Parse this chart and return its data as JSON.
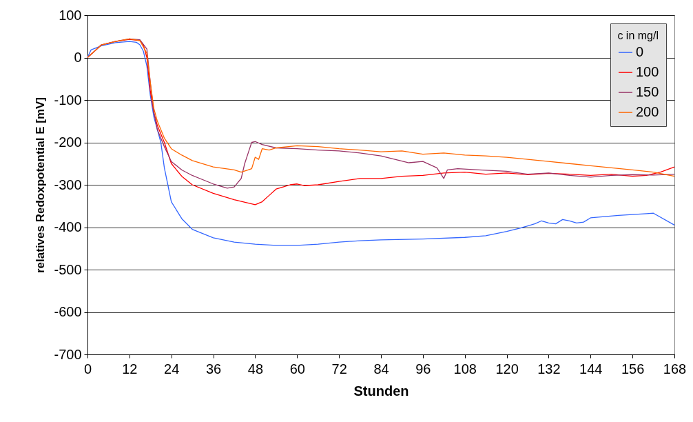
{
  "chart_data": {
    "type": "line",
    "xlabel": "Stunden",
    "ylabel": "relatives Redoxpotential E [mV]",
    "legend_title": "c in mg/l",
    "legend": "top right",
    "grid": "y",
    "marker": "none",
    "line_style": "solid",
    "xlim": [
      0,
      168
    ],
    "xticks": [
      0,
      12,
      24,
      36,
      48,
      60,
      72,
      84,
      96,
      108,
      120,
      132,
      144,
      156,
      168
    ],
    "ylim": [
      -700,
      100
    ],
    "yticks": [
      -700,
      -600,
      -500,
      -400,
      -300,
      -200,
      -100,
      0,
      100
    ],
    "series": [
      {
        "name": "0",
        "color": "#3366ff",
        "x": [
          0,
          1,
          4,
          8,
          12,
          14,
          15,
          16,
          17,
          18,
          19,
          20,
          21,
          22,
          23,
          24,
          27,
          30,
          36,
          42,
          48,
          54,
          60,
          66,
          72,
          78,
          84,
          96,
          108,
          114,
          120,
          124,
          128,
          130,
          132,
          134,
          136,
          138,
          140,
          142,
          144,
          148,
          152,
          156,
          160,
          162,
          168
        ],
        "values": [
          0,
          18,
          28,
          35,
          38,
          36,
          30,
          15,
          -20,
          -90,
          -140,
          -170,
          -200,
          -260,
          -300,
          -340,
          -380,
          -405,
          -425,
          -435,
          -440,
          -443,
          -443,
          -440,
          -435,
          -432,
          -430,
          -428,
          -424,
          -420,
          -410,
          -402,
          -392,
          -385,
          -390,
          -392,
          -382,
          -385,
          -390,
          -388,
          -378,
          -375,
          -372,
          -370,
          -368,
          -367,
          -395
        ]
      },
      {
        "name": "100",
        "color": "#ff0000",
        "x": [
          0,
          4,
          8,
          12,
          15,
          16,
          17,
          18,
          19,
          20,
          22,
          24,
          27,
          30,
          36,
          42,
          48,
          50,
          52,
          54,
          56,
          58,
          60,
          62,
          66,
          72,
          78,
          84,
          90,
          96,
          102,
          108,
          114,
          120,
          126,
          132,
          138,
          144,
          150,
          156,
          160,
          164,
          168
        ],
        "values": [
          0,
          30,
          38,
          43,
          40,
          30,
          0,
          -80,
          -130,
          -160,
          -200,
          -250,
          -280,
          -300,
          -320,
          -335,
          -347,
          -340,
          -325,
          -310,
          -305,
          -300,
          -298,
          -302,
          -300,
          -292,
          -285,
          -285,
          -280,
          -278,
          -272,
          -270,
          -275,
          -272,
          -276,
          -273,
          -275,
          -278,
          -275,
          -280,
          -278,
          -270,
          -258
        ]
      },
      {
        "name": "150",
        "color": "#993366",
        "x": [
          0,
          4,
          8,
          12,
          15,
          17,
          18,
          19,
          20,
          22,
          24,
          27,
          30,
          36,
          40,
          42,
          44,
          45,
          46,
          47,
          48,
          50,
          54,
          60,
          66,
          72,
          78,
          84,
          88,
          92,
          96,
          100,
          102,
          103,
          106,
          112,
          120,
          126,
          132,
          138,
          144,
          150,
          156,
          162,
          168
        ],
        "values": [
          0,
          30,
          38,
          44,
          42,
          20,
          -60,
          -130,
          -170,
          -210,
          -245,
          -265,
          -278,
          -298,
          -308,
          -305,
          -285,
          -250,
          -225,
          -200,
          -198,
          -205,
          -213,
          -215,
          -218,
          -220,
          -225,
          -232,
          -240,
          -248,
          -245,
          -260,
          -285,
          -265,
          -262,
          -265,
          -268,
          -275,
          -272,
          -278,
          -282,
          -278,
          -276,
          -277,
          -275
        ]
      },
      {
        "name": "200",
        "color": "#ff6600",
        "x": [
          0,
          4,
          8,
          12,
          15,
          17,
          18,
          19,
          20,
          22,
          24,
          27,
          30,
          36,
          42,
          44,
          46,
          47,
          48,
          49,
          50,
          52,
          54,
          60,
          66,
          72,
          78,
          84,
          90,
          96,
          102,
          108,
          114,
          120,
          126,
          132,
          138,
          144,
          150,
          156,
          162,
          168
        ],
        "values": [
          0,
          30,
          38,
          44,
          40,
          10,
          -60,
          -120,
          -150,
          -190,
          -215,
          -230,
          -243,
          -258,
          -265,
          -270,
          -265,
          -262,
          -235,
          -240,
          -215,
          -218,
          -213,
          -208,
          -210,
          -215,
          -218,
          -222,
          -220,
          -228,
          -225,
          -230,
          -232,
          -235,
          -240,
          -245,
          -250,
          -255,
          -260,
          -265,
          -270,
          -280
        ]
      }
    ]
  }
}
